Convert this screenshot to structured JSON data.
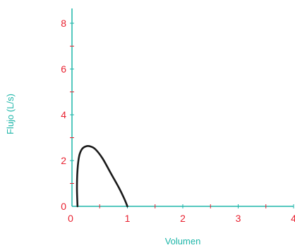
{
  "chart_data": {
    "type": "line",
    "xlabel": "Volumen",
    "ylabel": "Flujo (L/s)",
    "xlim": [
      0,
      4
    ],
    "ylim": [
      0,
      8
    ],
    "x_ticks": [
      "0",
      "1",
      "2",
      "3",
      "4"
    ],
    "y_ticks": [
      "0",
      "2",
      "4",
      "6",
      "8"
    ],
    "grid": false,
    "series": [
      {
        "x": [
          0.1,
          0.09,
          0.1,
          0.13,
          0.18,
          0.25,
          0.33,
          0.42,
          0.55,
          0.7,
          0.85,
          0.95,
          1.0
        ],
        "y": [
          0.0,
          0.8,
          1.6,
          2.2,
          2.5,
          2.62,
          2.62,
          2.5,
          2.1,
          1.45,
          0.8,
          0.3,
          0.0
        ]
      }
    ],
    "colors": {
      "axis": "#1cb5a8",
      "tick_label": "#e8202f",
      "axis_title": "#1cb5a8",
      "curve": "#1a1a1a"
    }
  }
}
